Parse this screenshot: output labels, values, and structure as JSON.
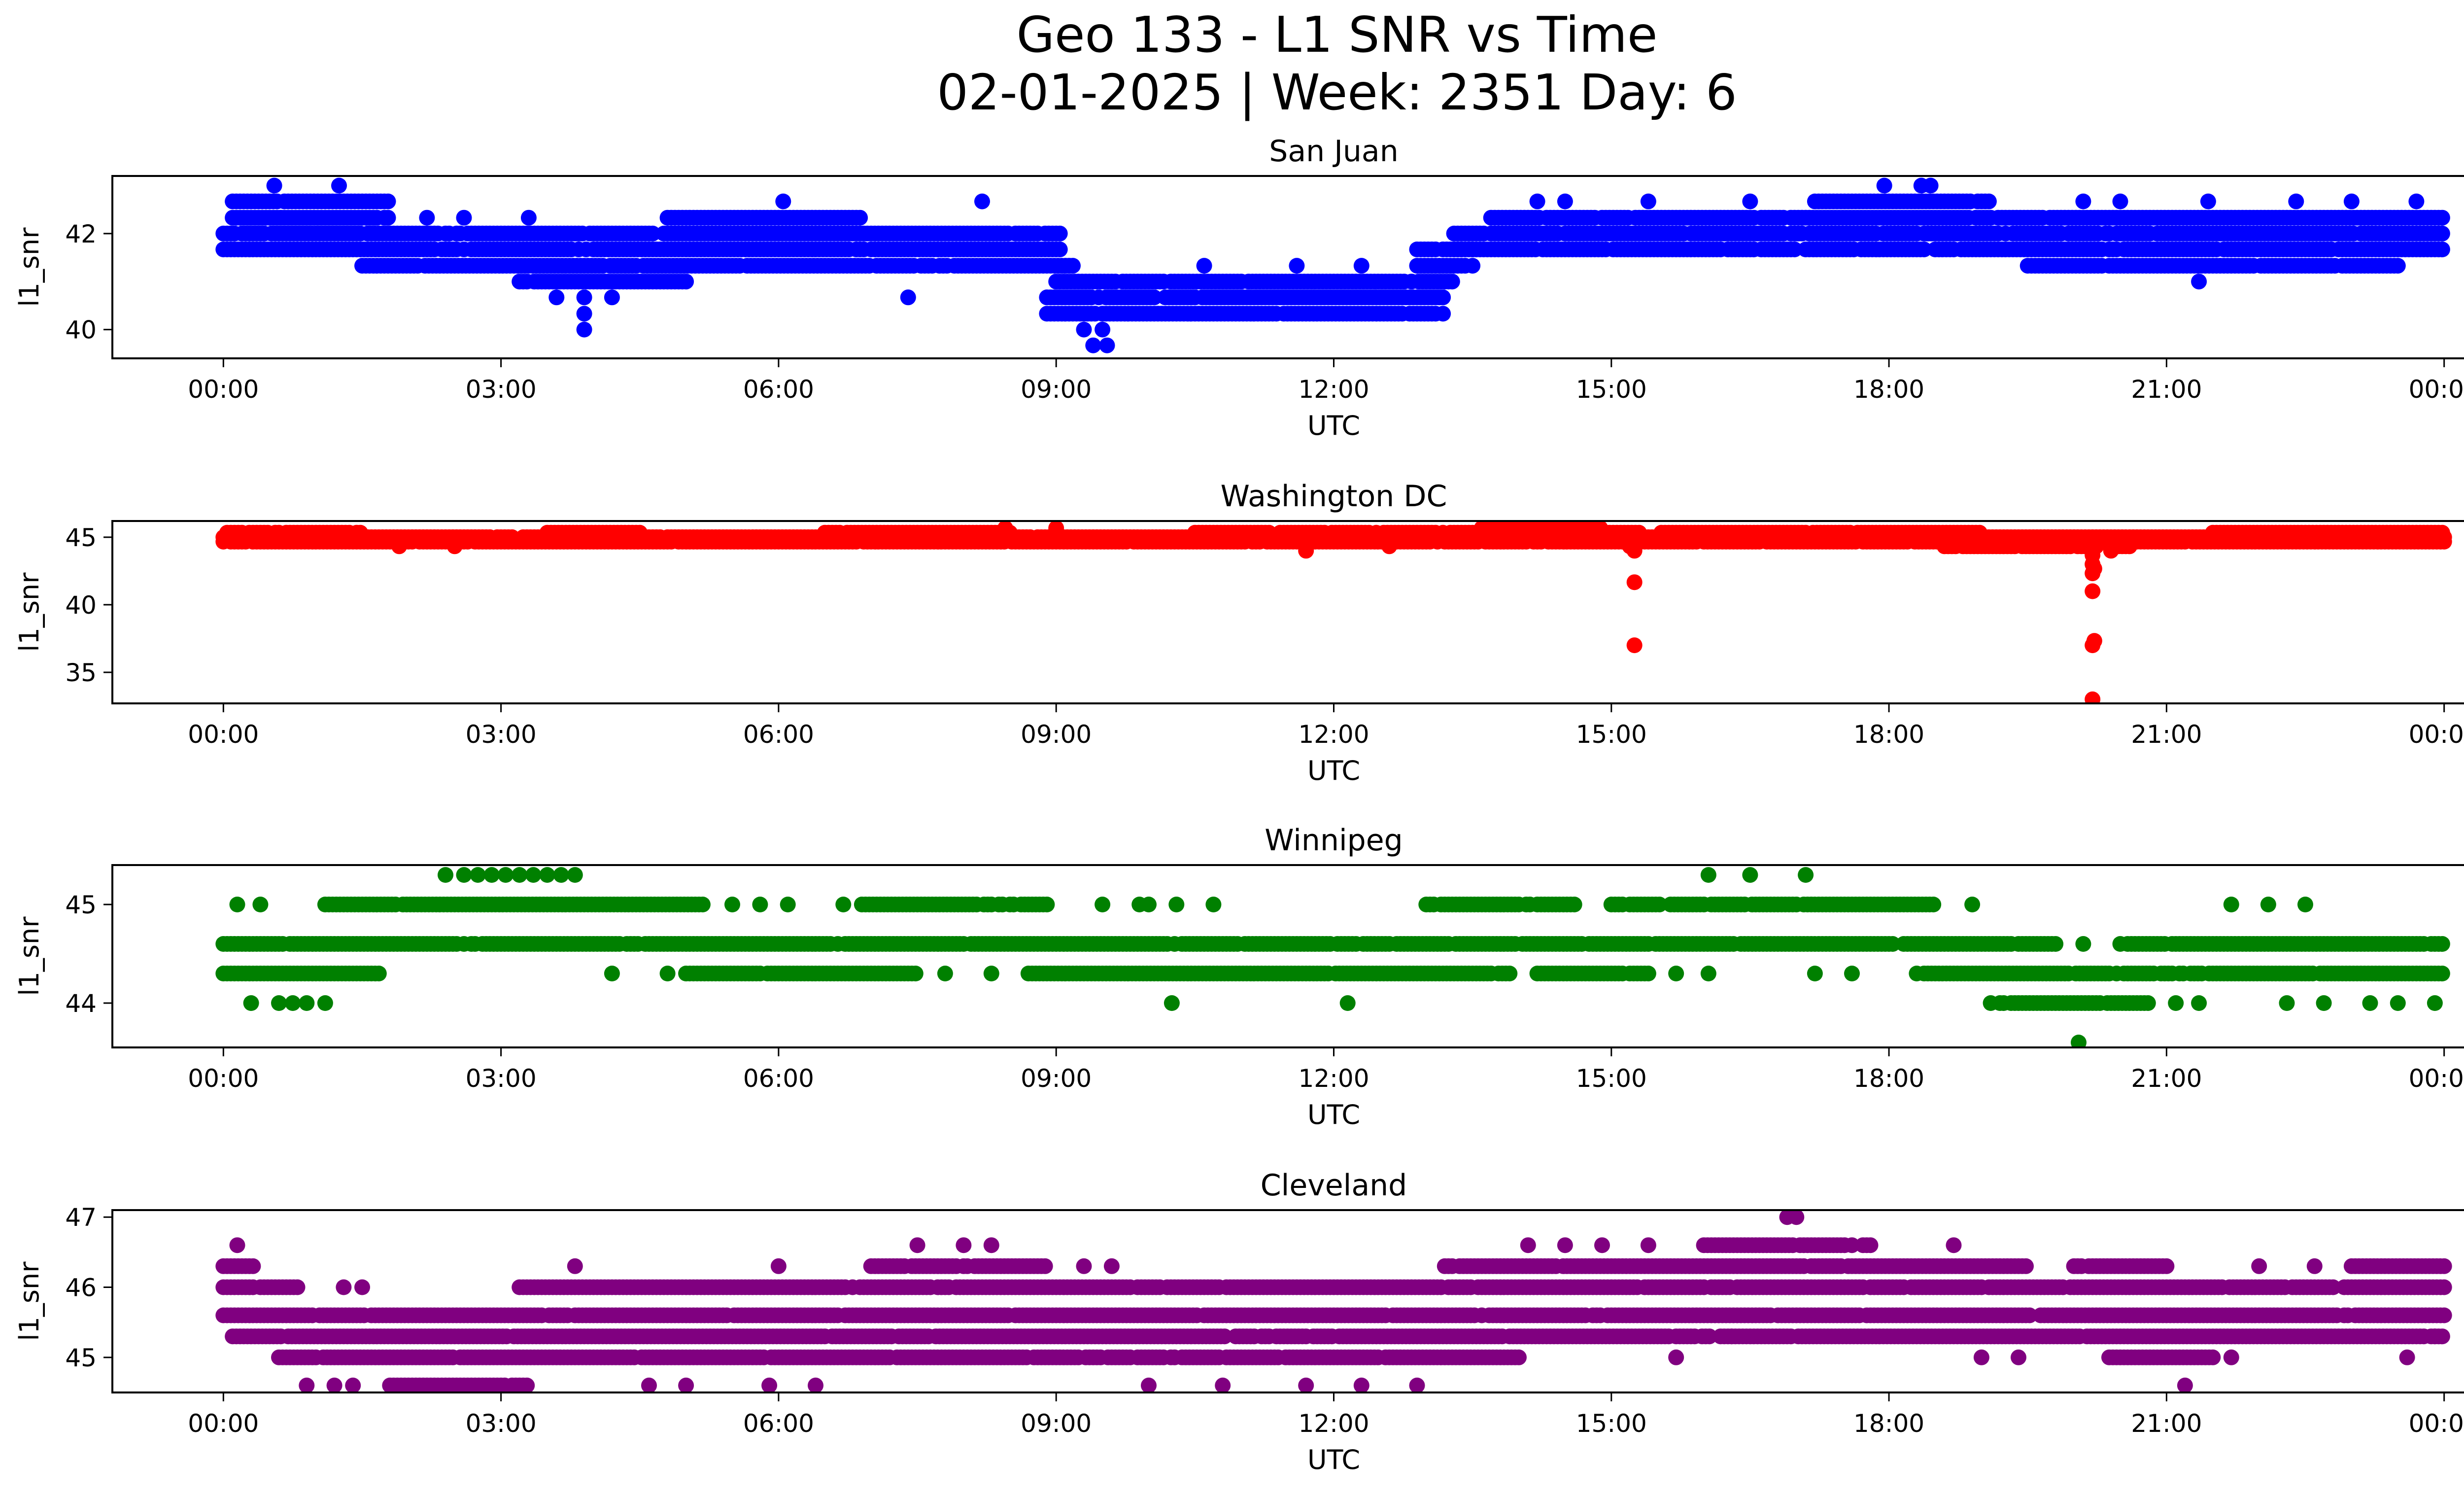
{
  "figure": {
    "title_line1": "Geo 133 - L1 SNR vs Time",
    "title_line2": "02-01-2025 | Week: 2351 Day: 6"
  },
  "chart_data": [
    {
      "type": "scatter",
      "title": "San Juan",
      "xlabel": "UTC",
      "ylabel": "l1_snr",
      "color": "#0000ff",
      "xticks": [
        "00:00",
        "03:00",
        "06:00",
        "09:00",
        "12:00",
        "15:00",
        "18:00",
        "21:00",
        "00:00"
      ],
      "xlim_hours": [
        -1.2,
        25.2
      ],
      "yticks": [
        40,
        42
      ],
      "ylim": [
        39.4,
        43.2
      ],
      "quant_step": 0.33,
      "bands": [
        {
          "start": 0.0,
          "end": 9.05,
          "levels": [
            41.67,
            42.0
          ]
        },
        {
          "start": 0.1,
          "end": 1.8,
          "levels": [
            42.33,
            42.67
          ]
        },
        {
          "start": 1.5,
          "end": 9.2,
          "levels": [
            41.33
          ]
        },
        {
          "start": 3.2,
          "end": 5.0,
          "levels": [
            41.0
          ]
        },
        {
          "start": 4.8,
          "end": 6.9,
          "levels": [
            42.33
          ]
        },
        {
          "start": 8.9,
          "end": 13.2,
          "levels": [
            40.33,
            40.67
          ]
        },
        {
          "start": 9.0,
          "end": 13.3,
          "levels": [
            41.0
          ]
        },
        {
          "start": 12.9,
          "end": 13.5,
          "levels": [
            41.33,
            41.67
          ]
        },
        {
          "start": 13.3,
          "end": 24.0,
          "levels": [
            41.67,
            42.0
          ]
        },
        {
          "start": 13.7,
          "end": 24.0,
          "levels": [
            42.33
          ]
        },
        {
          "start": 17.2,
          "end": 19.1,
          "levels": [
            42.67
          ]
        },
        {
          "start": 19.5,
          "end": 23.5,
          "levels": [
            41.33
          ]
        }
      ],
      "scatter_points": [
        {
          "t": 0.55,
          "v": 43.0
        },
        {
          "t": 1.25,
          "v": 43.0
        },
        {
          "t": 17.95,
          "v": 43.0
        },
        {
          "t": 18.35,
          "v": 43.0
        },
        {
          "t": 18.45,
          "v": 43.0
        },
        {
          "t": 3.9,
          "v": 40.0
        },
        {
          "t": 3.9,
          "v": 40.33
        },
        {
          "t": 3.6,
          "v": 40.67
        },
        {
          "t": 3.9,
          "v": 40.67
        },
        {
          "t": 4.2,
          "v": 40.67
        },
        {
          "t": 7.4,
          "v": 40.67
        },
        {
          "t": 6.05,
          "v": 42.67
        },
        {
          "t": 8.2,
          "v": 42.67
        },
        {
          "t": 21.35,
          "v": 41.0
        },
        {
          "t": 21.45,
          "v": 42.67
        },
        {
          "t": 22.4,
          "v": 42.67
        },
        {
          "t": 23.0,
          "v": 42.67
        },
        {
          "t": 23.7,
          "v": 42.67
        },
        {
          "t": 9.4,
          "v": 39.67
        },
        {
          "t": 9.55,
          "v": 39.67
        },
        {
          "t": 9.3,
          "v": 40.0
        },
        {
          "t": 9.5,
          "v": 40.0
        },
        {
          "t": 2.2,
          "v": 42.33
        },
        {
          "t": 2.6,
          "v": 42.33
        },
        {
          "t": 3.3,
          "v": 42.33
        },
        {
          "t": 14.2,
          "v": 42.67
        },
        {
          "t": 14.5,
          "v": 42.67
        },
        {
          "t": 15.4,
          "v": 42.67
        },
        {
          "t": 16.5,
          "v": 42.67
        },
        {
          "t": 20.1,
          "v": 42.67
        },
        {
          "t": 20.5,
          "v": 42.67
        },
        {
          "t": 10.6,
          "v": 41.33
        },
        {
          "t": 11.6,
          "v": 41.33
        },
        {
          "t": 12.3,
          "v": 41.33
        },
        {
          "t": 12.9,
          "v": 41.33
        }
      ]
    },
    {
      "type": "scatter",
      "title": "Washington DC",
      "xlabel": "UTC",
      "ylabel": "l1_snr",
      "color": "#ff0000",
      "xticks": [
        "00:00",
        "03:00",
        "06:00",
        "09:00",
        "12:00",
        "15:00",
        "18:00",
        "21:00",
        "00:00"
      ],
      "xlim_hours": [
        -1.2,
        25.2
      ],
      "yticks": [
        35,
        40,
        45
      ],
      "ylim": [
        32.7,
        46.2
      ],
      "quant_step": 0.33,
      "bands": [
        {
          "start": 0.0,
          "end": 24.0,
          "levels": [
            44.67,
            45.0
          ]
        },
        {
          "start": 0.0,
          "end": 1.5,
          "levels": [
            45.33
          ]
        },
        {
          "start": 3.5,
          "end": 4.5,
          "levels": [
            45.33
          ]
        },
        {
          "start": 6.5,
          "end": 8.5,
          "levels": [
            45.33
          ]
        },
        {
          "start": 10.5,
          "end": 15.3,
          "levels": [
            45.33
          ]
        },
        {
          "start": 13.6,
          "end": 14.9,
          "levels": [
            45.67
          ]
        },
        {
          "start": 15.5,
          "end": 19.0,
          "levels": [
            45.33
          ]
        },
        {
          "start": 18.6,
          "end": 20.6,
          "levels": [
            44.33
          ]
        },
        {
          "start": 21.5,
          "end": 24.0,
          "levels": [
            45.33
          ]
        }
      ],
      "scatter_points": [
        {
          "t": 1.9,
          "v": 44.33
        },
        {
          "t": 2.5,
          "v": 44.33
        },
        {
          "t": 11.7,
          "v": 44.0
        },
        {
          "t": 12.6,
          "v": 44.33
        },
        {
          "t": 8.45,
          "v": 45.67
        },
        {
          "t": 9.0,
          "v": 45.67
        },
        {
          "t": 15.2,
          "v": 44.33
        },
        {
          "t": 15.25,
          "v": 44.0
        },
        {
          "t": 15.25,
          "v": 41.67
        },
        {
          "t": 15.25,
          "v": 37.0
        },
        {
          "t": 20.2,
          "v": 43.67
        },
        {
          "t": 20.2,
          "v": 43.0
        },
        {
          "t": 20.22,
          "v": 42.67
        },
        {
          "t": 20.2,
          "v": 42.33
        },
        {
          "t": 20.2,
          "v": 41.0
        },
        {
          "t": 20.22,
          "v": 37.33
        },
        {
          "t": 20.2,
          "v": 37.0
        },
        {
          "t": 20.2,
          "v": 33.0
        },
        {
          "t": 20.4,
          "v": 44.0
        }
      ]
    },
    {
      "type": "scatter",
      "title": "Winnipeg",
      "xlabel": "UTC",
      "ylabel": "l1_snr",
      "color": "#008000",
      "xticks": [
        "00:00",
        "03:00",
        "06:00",
        "09:00",
        "12:00",
        "15:00",
        "18:00",
        "21:00",
        "00:00"
      ],
      "xlim_hours": [
        -1.2,
        25.2
      ],
      "yticks": [
        44,
        45
      ],
      "ylim": [
        43.55,
        45.4
      ],
      "quant_step": 0.33,
      "bands": [
        {
          "start": 0.0,
          "end": 19.8,
          "levels": [
            44.6
          ]
        },
        {
          "start": 20.5,
          "end": 24.0,
          "levels": [
            44.6
          ]
        },
        {
          "start": 0.0,
          "end": 1.7,
          "levels": [
            44.3
          ]
        },
        {
          "start": 1.1,
          "end": 5.2,
          "levels": [
            45.0
          ]
        },
        {
          "start": 5.0,
          "end": 7.5,
          "levels": [
            44.3
          ]
        },
        {
          "start": 6.9,
          "end": 8.9,
          "levels": [
            45.0
          ]
        },
        {
          "start": 8.7,
          "end": 13.9,
          "levels": [
            44.3
          ]
        },
        {
          "start": 13.0,
          "end": 14.6,
          "levels": [
            45.0
          ]
        },
        {
          "start": 14.2,
          "end": 15.4,
          "levels": [
            44.3
          ]
        },
        {
          "start": 15.0,
          "end": 18.5,
          "levels": [
            45.0
          ]
        },
        {
          "start": 18.3,
          "end": 24.0,
          "levels": [
            44.3
          ]
        },
        {
          "start": 19.2,
          "end": 20.8,
          "levels": [
            44.0
          ]
        }
      ],
      "scatter_points": [
        {
          "t": 0.15,
          "v": 45.0
        },
        {
          "t": 0.4,
          "v": 45.0
        },
        {
          "t": 0.3,
          "v": 44.0
        },
        {
          "t": 0.6,
          "v": 44.0
        },
        {
          "t": 0.75,
          "v": 44.0
        },
        {
          "t": 0.9,
          "v": 44.0
        },
        {
          "t": 1.1,
          "v": 44.0
        },
        {
          "t": 2.4,
          "v": 45.3
        },
        {
          "t": 2.6,
          "v": 45.3
        },
        {
          "t": 2.75,
          "v": 45.3
        },
        {
          "t": 2.9,
          "v": 45.3
        },
        {
          "t": 3.05,
          "v": 45.3
        },
        {
          "t": 3.2,
          "v": 45.3
        },
        {
          "t": 3.35,
          "v": 45.3
        },
        {
          "t": 3.5,
          "v": 45.3
        },
        {
          "t": 3.65,
          "v": 45.3
        },
        {
          "t": 3.8,
          "v": 45.3
        },
        {
          "t": 4.2,
          "v": 44.3
        },
        {
          "t": 4.8,
          "v": 44.3
        },
        {
          "t": 5.5,
          "v": 45.0
        },
        {
          "t": 5.8,
          "v": 45.0
        },
        {
          "t": 6.1,
          "v": 45.0
        },
        {
          "t": 6.7,
          "v": 45.0
        },
        {
          "t": 7.8,
          "v": 44.3
        },
        {
          "t": 8.3,
          "v": 44.3
        },
        {
          "t": 9.5,
          "v": 45.0
        },
        {
          "t": 9.9,
          "v": 45.0
        },
        {
          "t": 10.0,
          "v": 45.0
        },
        {
          "t": 10.3,
          "v": 45.0
        },
        {
          "t": 10.7,
          "v": 45.0
        },
        {
          "t": 10.25,
          "v": 44.0
        },
        {
          "t": 12.15,
          "v": 44.0
        },
        {
          "t": 15.7,
          "v": 44.3
        },
        {
          "t": 16.05,
          "v": 44.3
        },
        {
          "t": 17.2,
          "v": 44.3
        },
        {
          "t": 17.6,
          "v": 44.3
        },
        {
          "t": 16.05,
          "v": 45.3
        },
        {
          "t": 16.5,
          "v": 45.3
        },
        {
          "t": 17.1,
          "v": 45.3
        },
        {
          "t": 18.9,
          "v": 45.0
        },
        {
          "t": 19.1,
          "v": 44.0
        },
        {
          "t": 20.05,
          "v": 43.6
        },
        {
          "t": 20.1,
          "v": 44.6
        },
        {
          "t": 21.1,
          "v": 44.0
        },
        {
          "t": 21.35,
          "v": 44.0
        },
        {
          "t": 21.7,
          "v": 45.0
        },
        {
          "t": 22.1,
          "v": 45.0
        },
        {
          "t": 22.5,
          "v": 45.0
        },
        {
          "t": 22.3,
          "v": 44.0
        },
        {
          "t": 22.7,
          "v": 44.0
        },
        {
          "t": 23.2,
          "v": 44.0
        },
        {
          "t": 23.5,
          "v": 44.0
        },
        {
          "t": 23.9,
          "v": 44.0
        }
      ]
    },
    {
      "type": "scatter",
      "title": "Cleveland",
      "xlabel": "UTC",
      "ylabel": "l1_snr",
      "color": "#800080",
      "xticks": [
        "00:00",
        "03:00",
        "06:00",
        "09:00",
        "12:00",
        "15:00",
        "18:00",
        "21:00",
        "00:00"
      ],
      "xlim_hours": [
        -1.2,
        25.2
      ],
      "yticks": [
        45,
        46,
        47
      ],
      "ylim": [
        44.5,
        47.1
      ],
      "quant_step": 0.33,
      "bands": [
        {
          "start": 0.0,
          "end": 24.0,
          "levels": [
            45.6
          ]
        },
        {
          "start": 0.1,
          "end": 24.0,
          "levels": [
            45.3
          ]
        },
        {
          "start": 0.0,
          "end": 0.35,
          "levels": [
            46.0,
            46.3
          ]
        },
        {
          "start": 0.4,
          "end": 0.8,
          "levels": [
            46.0
          ]
        },
        {
          "start": 0.6,
          "end": 14.0,
          "levels": [
            45.0
          ]
        },
        {
          "start": 1.8,
          "end": 3.3,
          "levels": [
            44.6
          ]
        },
        {
          "start": 3.2,
          "end": 24.0,
          "levels": [
            46.0
          ]
        },
        {
          "start": 7.0,
          "end": 8.9,
          "levels": [
            46.3
          ]
        },
        {
          "start": 13.2,
          "end": 19.5,
          "levels": [
            46.3
          ]
        },
        {
          "start": 16.0,
          "end": 17.8,
          "levels": [
            46.6
          ]
        },
        {
          "start": 20.3,
          "end": 21.5,
          "levels": [
            45.0
          ]
        },
        {
          "start": 20.0,
          "end": 21.0,
          "levels": [
            46.3
          ]
        },
        {
          "start": 23.0,
          "end": 24.0,
          "levels": [
            46.3
          ]
        }
      ],
      "scatter_points": [
        {
          "t": 0.15,
          "v": 46.6
        },
        {
          "t": 0.9,
          "v": 44.6
        },
        {
          "t": 1.2,
          "v": 44.6
        },
        {
          "t": 1.4,
          "v": 44.6
        },
        {
          "t": 1.3,
          "v": 46.0
        },
        {
          "t": 1.5,
          "v": 46.0
        },
        {
          "t": 3.8,
          "v": 46.3
        },
        {
          "t": 4.6,
          "v": 44.6
        },
        {
          "t": 5.0,
          "v": 44.6
        },
        {
          "t": 5.9,
          "v": 44.6
        },
        {
          "t": 6.4,
          "v": 44.6
        },
        {
          "t": 6.0,
          "v": 46.3
        },
        {
          "t": 7.5,
          "v": 46.6
        },
        {
          "t": 8.0,
          "v": 46.6
        },
        {
          "t": 8.3,
          "v": 46.6
        },
        {
          "t": 9.3,
          "v": 46.3
        },
        {
          "t": 9.6,
          "v": 46.3
        },
        {
          "t": 10.0,
          "v": 44.6
        },
        {
          "t": 10.8,
          "v": 44.6
        },
        {
          "t": 11.7,
          "v": 44.6
        },
        {
          "t": 12.3,
          "v": 44.6
        },
        {
          "t": 12.9,
          "v": 44.6
        },
        {
          "t": 14.1,
          "v": 46.6
        },
        {
          "t": 14.5,
          "v": 46.6
        },
        {
          "t": 14.9,
          "v": 46.6
        },
        {
          "t": 15.4,
          "v": 46.6
        },
        {
          "t": 16.9,
          "v": 47.0
        },
        {
          "t": 17.0,
          "v": 47.0
        },
        {
          "t": 18.7,
          "v": 46.6
        },
        {
          "t": 15.7,
          "v": 45.0
        },
        {
          "t": 16.3,
          "v": 45.3
        },
        {
          "t": 19.0,
          "v": 45.0
        },
        {
          "t": 19.4,
          "v": 45.0
        },
        {
          "t": 21.2,
          "v": 44.6
        },
        {
          "t": 22.0,
          "v": 46.3
        },
        {
          "t": 22.6,
          "v": 46.3
        },
        {
          "t": 21.7,
          "v": 45.0
        },
        {
          "t": 23.6,
          "v": 45.0
        },
        {
          "t": 23.9,
          "v": 45.3
        }
      ]
    }
  ]
}
